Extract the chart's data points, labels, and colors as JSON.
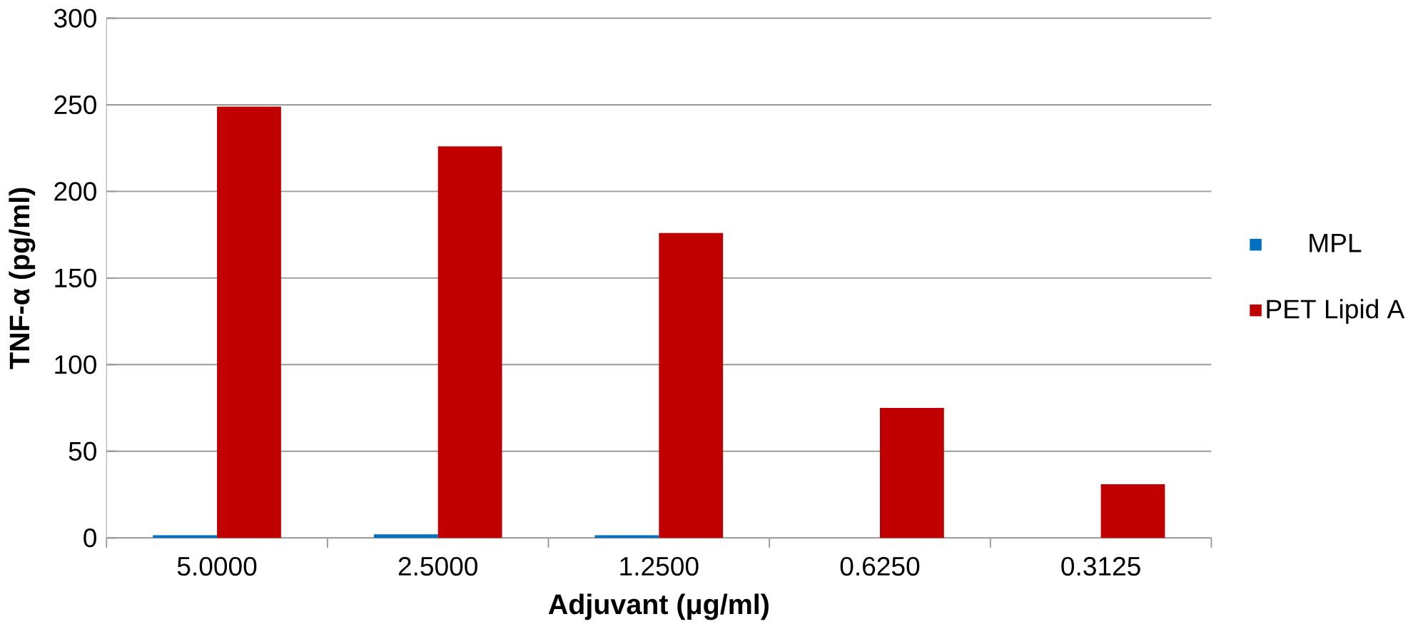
{
  "chart_data": {
    "type": "bar",
    "xlabel": "Adjuvant (μg/ml)",
    "ylabel": "TNF-α (pg/ml)",
    "categories": [
      "5.0000",
      "2.5000",
      "1.2500",
      "0.6250",
      "0.3125"
    ],
    "series": [
      {
        "name": "MPL",
        "color": "#0070c0",
        "values": [
          1.5,
          2,
          1.5,
          0,
          0
        ]
      },
      {
        "name": "PET Lipid A",
        "color": "#c00000",
        "values": [
          249,
          226,
          176,
          75,
          31
        ]
      }
    ],
    "ylim": [
      0,
      300
    ],
    "yticks": [
      0,
      50,
      100,
      150,
      200,
      250,
      300
    ],
    "grid": "y",
    "legend": "right"
  }
}
